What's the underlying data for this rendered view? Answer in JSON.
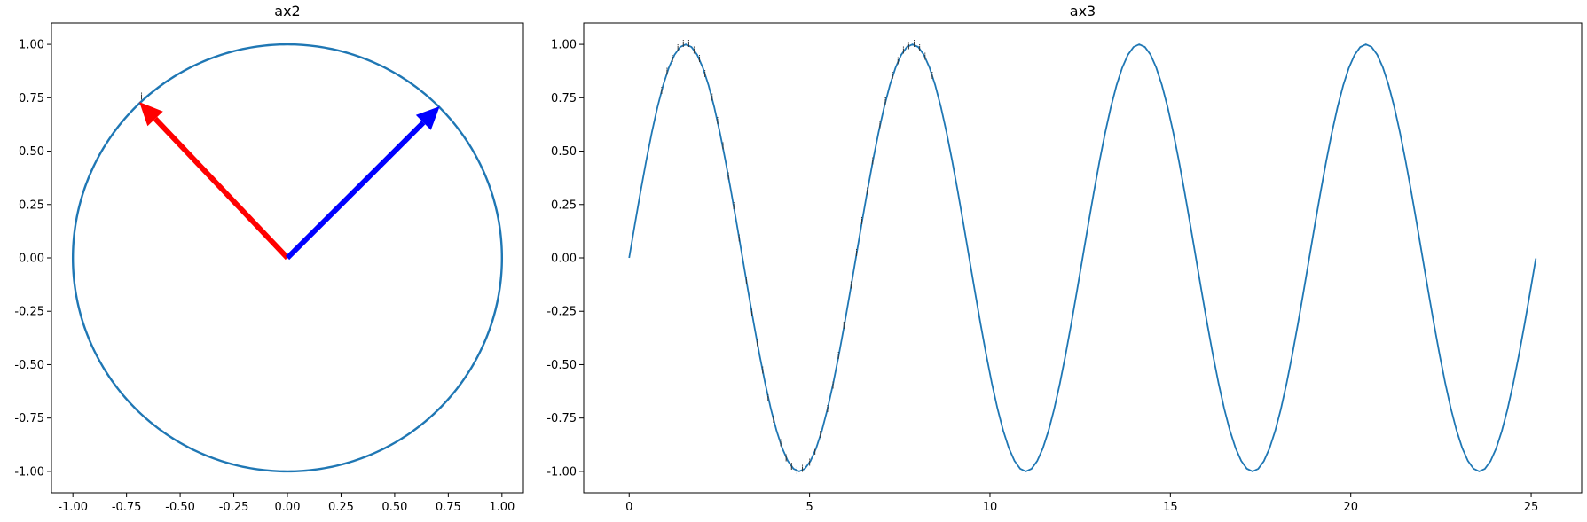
{
  "colors": {
    "series": "#1f77b4",
    "arrow_red": "#ff0000",
    "arrow_blue": "#0000ff",
    "axis": "#000000",
    "background": "#ffffff"
  },
  "chart_data": [
    {
      "id": "ax2",
      "type": "line",
      "title": "ax2",
      "xlabel": "",
      "ylabel": "",
      "xlim": [
        -1.1,
        1.1
      ],
      "ylim": [
        -1.1,
        1.1
      ],
      "xticks": [
        "-1.00",
        "-0.75",
        "-0.50",
        "-0.25",
        "0.00",
        "0.25",
        "0.50",
        "0.75",
        "1.00"
      ],
      "yticks": [
        "-1.00",
        "-0.75",
        "-0.50",
        "-0.25",
        "0.00",
        "0.25",
        "0.50",
        "0.75",
        "1.00"
      ],
      "grid": false,
      "series": [
        {
          "kind": "parametric-circle",
          "center": [
            0,
            0
          ],
          "radius": 1.0,
          "color": "#1f77b4"
        }
      ],
      "arrows": [
        {
          "from": [
            0,
            0
          ],
          "to": [
            -0.69,
            0.73
          ],
          "color": "#ff0000"
        },
        {
          "from": [
            0,
            0
          ],
          "to": [
            0.71,
            0.71
          ],
          "color": "#0000ff"
        }
      ],
      "annotations": [
        {
          "text": "i",
          "x": -0.68,
          "y": 0.74
        }
      ]
    },
    {
      "id": "ax3",
      "type": "line",
      "title": "ax3",
      "xlabel": "",
      "ylabel": "",
      "xlim": [
        -1.26,
        26.4
      ],
      "ylim": [
        -1.1,
        1.1
      ],
      "xticks": [
        "0",
        "5",
        "10",
        "15",
        "20",
        "25"
      ],
      "yticks": [
        "-1.00",
        "-0.75",
        "-0.50",
        "-0.25",
        "0.00",
        "0.25",
        "0.50",
        "0.75",
        "1.00"
      ],
      "grid": false,
      "series": [
        {
          "function": "sin",
          "x_range": [
            0,
            25.13
          ],
          "points": 160,
          "color": "#1f77b4"
        }
      ],
      "annotations": {
        "text": "i",
        "x": [
          0.9,
          1.05,
          1.2,
          1.35,
          1.5,
          1.65,
          1.8,
          1.95,
          2.1,
          2.3,
          2.45,
          2.6,
          2.75,
          2.9,
          3.05,
          3.25,
          3.4,
          3.55,
          3.7,
          3.85,
          4.0,
          4.2,
          4.35,
          4.5,
          4.65,
          4.8,
          5.0,
          5.15,
          5.3,
          5.5,
          5.65,
          5.8,
          5.95,
          6.15,
          6.3,
          6.45,
          6.6,
          6.75,
          6.95,
          7.1,
          7.3,
          7.45,
          7.6,
          7.75,
          7.9,
          8.05,
          8.2,
          8.4
        ],
        "y": [
          0.78,
          0.87,
          0.93,
          0.98,
          1.0,
          1.0,
          0.97,
          0.93,
          0.86,
          0.75,
          0.64,
          0.52,
          0.38,
          0.24,
          0.09,
          -0.11,
          -0.26,
          -0.4,
          -0.53,
          -0.66,
          -0.76,
          -0.87,
          -0.94,
          -0.98,
          -1.0,
          -0.99,
          -0.96,
          -0.91,
          -0.83,
          -0.71,
          -0.6,
          -0.46,
          -0.32,
          -0.13,
          0.02,
          0.17,
          0.31,
          0.45,
          0.62,
          0.73,
          0.85,
          0.92,
          0.97,
          0.99,
          1.0,
          0.98,
          0.94,
          0.85
        ]
      }
    }
  ]
}
